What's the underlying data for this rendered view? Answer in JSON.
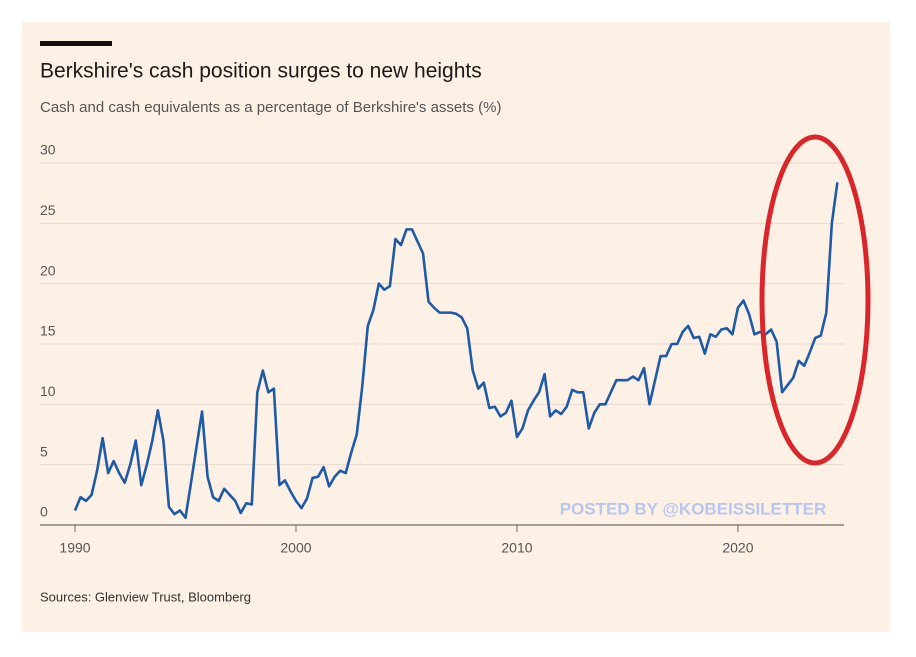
{
  "chart_data": {
    "type": "line",
    "title": "Berkshire's cash position surges to new heights",
    "subtitle": "Cash and cash equivalents as a percentage of Berkshire's assets (%)",
    "source": "Sources: Glenview Trust, Bloomberg",
    "annotation": "POSTED BY @KOBEISSILETTER",
    "color": "#1f5aa6",
    "grid": true,
    "xlim": [
      1990,
      2024.8
    ],
    "xticks": [
      1990,
      2000,
      2010,
      2020
    ],
    "ylim": [
      0,
      30
    ],
    "yticks": [
      0,
      5,
      10,
      15,
      20,
      25,
      30
    ],
    "x": [
      1990.0,
      1990.25,
      1990.5,
      1990.75,
      1991.0,
      1991.25,
      1991.5,
      1991.75,
      1992.0,
      1992.25,
      1992.5,
      1992.75,
      1993.0,
      1993.25,
      1993.5,
      1993.75,
      1994.0,
      1994.25,
      1994.5,
      1994.75,
      1995.0,
      1995.25,
      1995.5,
      1995.75,
      1996.0,
      1996.25,
      1996.5,
      1996.75,
      1997.0,
      1997.25,
      1997.5,
      1997.75,
      1998.0,
      1998.25,
      1998.5,
      1998.75,
      1999.0,
      1999.25,
      1999.5,
      1999.75,
      2000.0,
      2000.25,
      2000.5,
      2000.75,
      2001.0,
      2001.25,
      2001.5,
      2001.75,
      2002.0,
      2002.25,
      2002.5,
      2002.75,
      2003.0,
      2003.25,
      2003.5,
      2003.75,
      2004.0,
      2004.25,
      2004.5,
      2004.75,
      2005.0,
      2005.25,
      2005.5,
      2005.75,
      2006.0,
      2006.25,
      2006.5,
      2006.75,
      2007.0,
      2007.25,
      2007.5,
      2007.75,
      2008.0,
      2008.25,
      2008.5,
      2008.75,
      2009.0,
      2009.25,
      2009.5,
      2009.75,
      2010.0,
      2010.25,
      2010.5,
      2010.75,
      2011.0,
      2011.25,
      2011.5,
      2011.75,
      2012.0,
      2012.25,
      2012.5,
      2012.75,
      2013.0,
      2013.25,
      2013.5,
      2013.75,
      2014.0,
      2014.25,
      2014.5,
      2014.75,
      2015.0,
      2015.25,
      2015.5,
      2015.75,
      2016.0,
      2016.25,
      2016.5,
      2016.75,
      2017.0,
      2017.25,
      2017.5,
      2017.75,
      2018.0,
      2018.25,
      2018.5,
      2018.75,
      2019.0,
      2019.25,
      2019.5,
      2019.75,
      2020.0,
      2020.25,
      2020.5,
      2020.75,
      2021.0,
      2021.25,
      2021.5,
      2021.75,
      2022.0,
      2022.25,
      2022.5,
      2022.75,
      2023.0,
      2023.25,
      2023.5,
      2023.75,
      2024.0,
      2024.25,
      2024.5
    ],
    "values": [
      1.2,
      2.3,
      2.0,
      2.5,
      4.5,
      7.2,
      4.3,
      5.3,
      4.3,
      3.5,
      5.0,
      7.0,
      3.3,
      5.0,
      7.0,
      9.5,
      7.0,
      1.5,
      0.9,
      1.2,
      0.6,
      3.5,
      6.5,
      9.4,
      4.0,
      2.3,
      2.0,
      3.0,
      2.5,
      2.0,
      1.0,
      1.8,
      1.7,
      11.0,
      12.8,
      11.0,
      11.3,
      3.3,
      3.7,
      2.8,
      2.0,
      1.4,
      2.2,
      3.9,
      4.0,
      4.8,
      3.2,
      4.0,
      4.5,
      4.3,
      6.0,
      7.5,
      11.5,
      16.5,
      17.8,
      20.0,
      19.5,
      19.8,
      23.7,
      23.2,
      24.5,
      24.5,
      23.5,
      22.5,
      18.5,
      18.0,
      17.6,
      17.6,
      17.6,
      17.5,
      17.2,
      16.3,
      12.8,
      11.3,
      11.8,
      9.7,
      9.8,
      9.0,
      9.3,
      10.3,
      7.3,
      8.0,
      9.5,
      10.3,
      11.0,
      12.5,
      9.0,
      9.5,
      9.2,
      9.8,
      11.2,
      11.0,
      11.0,
      8.0,
      9.3,
      10.0,
      10.0,
      11.0,
      12.0,
      12.0,
      12.0,
      12.3,
      12.0,
      13.0,
      10.0,
      12.0,
      14.0,
      14.0,
      15.0,
      15.0,
      16.0,
      16.5,
      15.5,
      15.6,
      14.2,
      15.8,
      15.6,
      16.2,
      16.3,
      15.8,
      18.0,
      18.6,
      17.5,
      15.8,
      16.0,
      15.8,
      16.2,
      15.2,
      11.0,
      11.6,
      12.2,
      13.6,
      13.2,
      14.3,
      15.5,
      15.7,
      17.6,
      25.0,
      28.4
    ]
  }
}
